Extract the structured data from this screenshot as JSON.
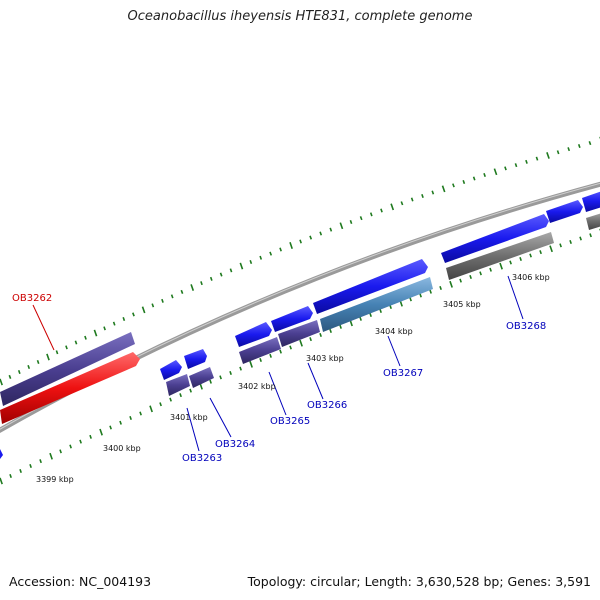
{
  "title": "Oceanobacillus iheyensis HTE831, complete genome",
  "accession": "Accession: NC_004193",
  "topology": "Topology: circular; Length: 3,630,528 bp; Genes: 3,591",
  "colors": {
    "backbone": "#8c8c8c",
    "tick": "#1f7a1f",
    "gene_forward": "#1a1aee",
    "gene_reverse": "#4b3f91",
    "gene_red": "#ee1111",
    "gene_steelblue": "#4682b4",
    "gene_gray": "#6f6f6f",
    "label_blue": "#0000bb",
    "label_red": "#cc0000"
  },
  "scale_labels": [
    "3399 kbp",
    "3400 kbp",
    "3401 kbp",
    "3402 kbp",
    "3403 kbp",
    "3404 kbp",
    "3405 kbp",
    "3406 kbp"
  ],
  "gene_labels": [
    {
      "name": "OB3262",
      "color": "label_red"
    },
    {
      "name": "OB3263",
      "color": "label_blue"
    },
    {
      "name": "OB3264",
      "color": "label_blue"
    },
    {
      "name": "OB3265",
      "color": "label_blue"
    },
    {
      "name": "OB3266",
      "color": "label_blue"
    },
    {
      "name": "OB3267",
      "color": "label_blue"
    },
    {
      "name": "OB3268",
      "color": "label_blue"
    }
  ]
}
